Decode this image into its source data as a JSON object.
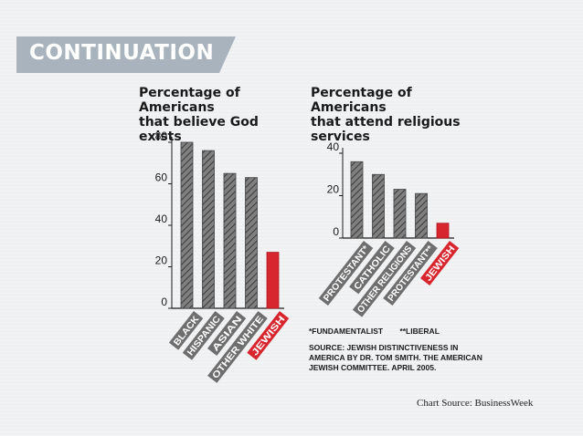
{
  "banner": {
    "label": "CONTINUATION"
  },
  "colors": {
    "banner": "#a9b3bd",
    "bar_gray": "#7f7f7f",
    "bar_highlight": "#d8262f",
    "label_gray": "#6e6e6e"
  },
  "chart_data": [
    {
      "type": "bar",
      "title": "Percentage of Americans\nthat believe God exists",
      "categories": [
        "BLACK",
        "HISPANIC",
        "ASIAN",
        "OTHER WHITE",
        "JEWISH"
      ],
      "values": [
        80,
        76,
        65,
        63,
        27
      ],
      "highlight": "JEWISH",
      "ylim": [
        0,
        80
      ],
      "yticks": [
        "0",
        "20",
        "40",
        "60",
        "80"
      ],
      "grid": false
    },
    {
      "type": "bar",
      "title": "Percentage of Americans\nthat attend religious\nservices",
      "categories": [
        "PROTESTANT*",
        "CATHOLIC",
        "OTHER RELIGIONS",
        "PROTESTANT**",
        "JEWISH"
      ],
      "values": [
        36,
        30,
        23,
        21,
        7
      ],
      "highlight": "JEWISH",
      "ylim": [
        0,
        40
      ],
      "yticks": [
        "0",
        "20",
        "40"
      ],
      "grid": false
    }
  ],
  "footnotes": [
    "*FUNDAMENTALIST",
    "**LIBERAL"
  ],
  "source": "SOURCE: JEWISH DISTINCTIVENESS IN AMERICA BY DR. TOM SMITH. THE AMERICAN JEWISH COMMITTEE. APRIL 2005.",
  "credit": "Chart Source: BusinessWeek"
}
